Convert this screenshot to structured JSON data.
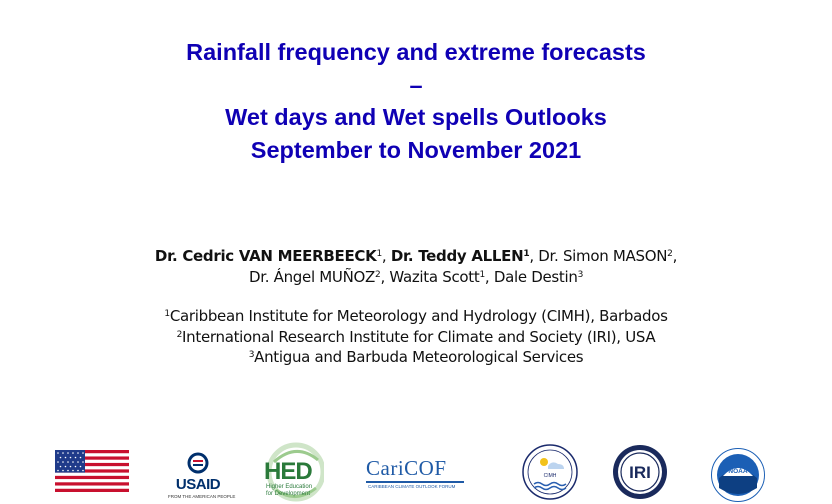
{
  "title": {
    "line1": "Rainfall frequency and extreme forecasts",
    "line2": "–",
    "line3": "Wet days and Wet spells Outlooks",
    "line4": "September to November 2021"
  },
  "authors": {
    "a1_name": "Dr. Cedric VAN MEERBEECK",
    "a1_sup": "1",
    "a2_name": "Dr. Teddy ALLEN",
    "a2_sup": "1",
    "a3_name": "Dr. Simon MASON",
    "a3_sup": "2",
    "a4_name": "Dr. Ángel MUÑOZ",
    "a4_sup": "2",
    "a5_name": "Wazita Scott",
    "a5_sup": "1",
    "a6_name": "Dale Destin",
    "a6_sup": "3",
    "sep": ", "
  },
  "affiliations": [
    {
      "sup": "1",
      "text": "Caribbean Institute for Meteorology and Hydrology (CIMH), Barbados"
    },
    {
      "sup": "2",
      "text": "International Research Institute for Climate and Society (IRI), USA"
    },
    {
      "sup": "3",
      "text": "Antigua and Barbuda Meteorological Services"
    }
  ],
  "logos": {
    "usaid_text": "USAID",
    "usaid_sub": "FROM THE AMERICAN PEOPLE",
    "hed_text": "HED",
    "hed_sub1": "Higher Education",
    "hed_sub2": "for Development",
    "caricof_text": "CariCOF",
    "caricof_sub": "CARIBBEAN CLIMATE OUTLOOK FORUM",
    "cimh_text": "CIMH",
    "iri_text": "IRI",
    "noaa_text": "NOAA"
  },
  "colors": {
    "title": "#0f00b4",
    "usaid": "#002f6c",
    "hed": "#2a7a3a",
    "caricof": "#1f5aa6",
    "noaa": "#1b5fb5"
  }
}
